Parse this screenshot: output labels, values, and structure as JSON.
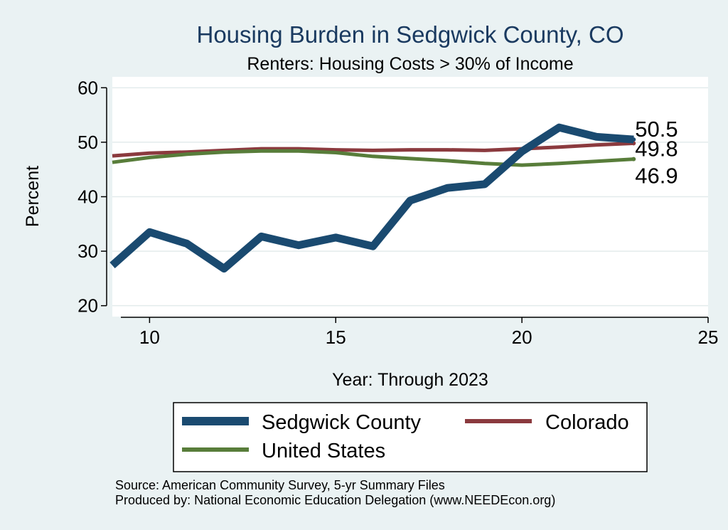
{
  "chart_data": {
    "type": "line",
    "title": "Housing Burden in Sedgwick County, CO",
    "subtitle": "Renters: Housing Costs > 30% of Income",
    "xlabel": "Year: Through 2023",
    "ylabel": "Percent",
    "xlim": [
      9,
      25
    ],
    "ylim": [
      18,
      62
    ],
    "xticks": [
      10,
      15,
      20,
      25
    ],
    "yticks": [
      20,
      30,
      40,
      50,
      60
    ],
    "grid": true,
    "legend_position": "bottom",
    "x": [
      9,
      10,
      11,
      12,
      13,
      14,
      15,
      16,
      17,
      18,
      19,
      20,
      21,
      22,
      23
    ],
    "series": [
      {
        "name": "Sedgwick County",
        "color": "#1a4a70",
        "values": [
          27.4,
          33.5,
          31.4,
          26.8,
          32.7,
          31.1,
          32.5,
          30.9,
          39.3,
          41.6,
          42.3,
          48.3,
          52.7,
          51.0,
          50.5
        ],
        "end_label": "50.5"
      },
      {
        "name": "Colorado",
        "color": "#8b3a3e",
        "values": [
          47.5,
          48.0,
          48.2,
          48.5,
          48.8,
          48.8,
          48.6,
          48.5,
          48.6,
          48.6,
          48.5,
          48.8,
          49.1,
          49.5,
          49.8
        ],
        "end_label": "49.8"
      },
      {
        "name": "United States",
        "color": "#587d3a",
        "values": [
          46.3,
          47.2,
          47.8,
          48.2,
          48.4,
          48.4,
          48.1,
          47.4,
          47.0,
          46.6,
          46.1,
          45.8,
          46.1,
          46.5,
          46.9
        ],
        "end_label": "46.9"
      }
    ]
  },
  "legend": {
    "items": [
      "Sedgwick County",
      "Colorado",
      "United States"
    ]
  },
  "notes": {
    "source": "Source: American Community Survey, 5-yr Summary Files",
    "produced_by": "Produced by: National Economic Education Delegation (www.NEEDEcon.org)"
  }
}
